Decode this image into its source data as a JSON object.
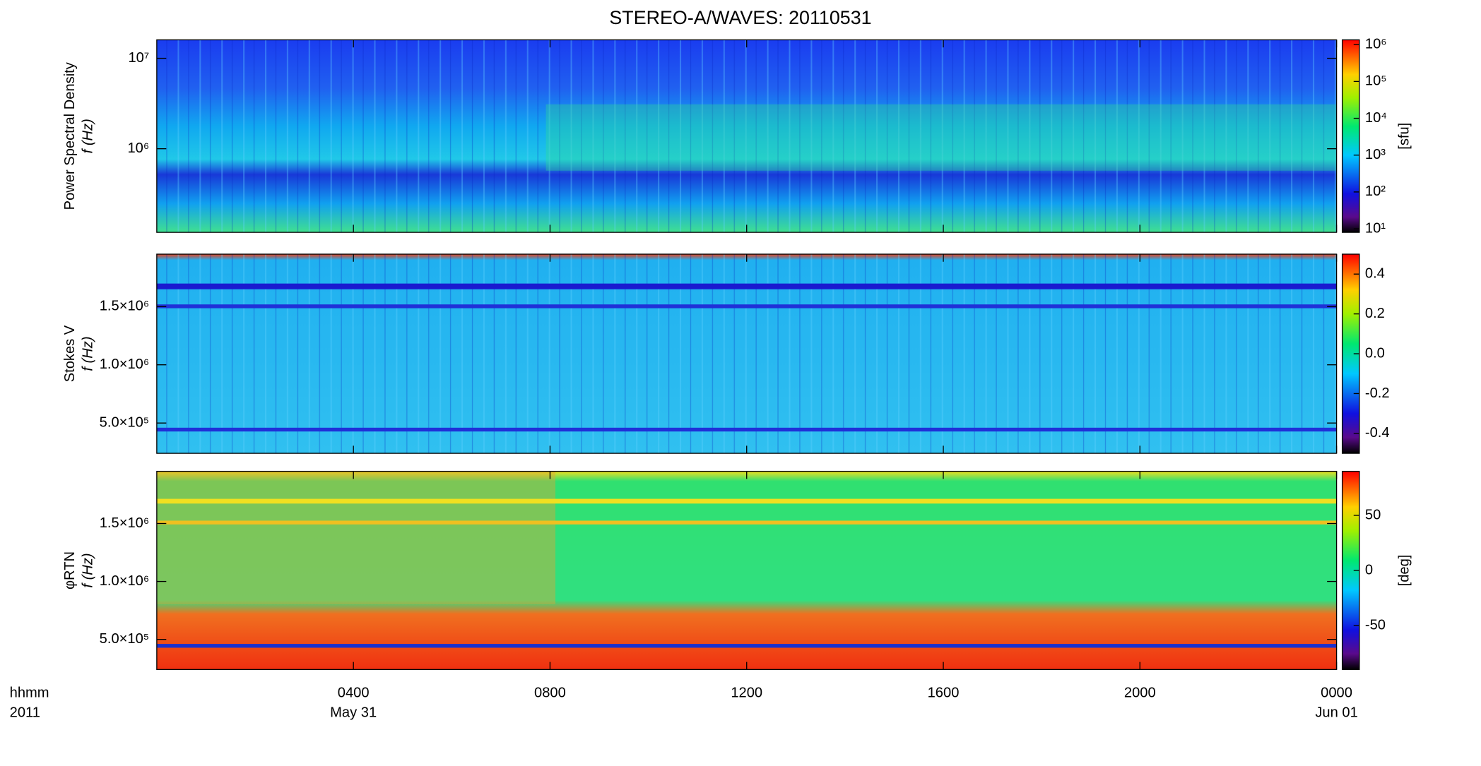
{
  "title": "STEREO-A/WAVES: 20110531",
  "chart_data": [
    {
      "type": "heatmap",
      "ylabel": "Power Spectral Density",
      "ylabel2": "f (Hz)",
      "ylog": true,
      "ylim": [
        119000,
        16000000
      ],
      "yticks": [
        {
          "value": 1000000,
          "label": "10⁶"
        },
        {
          "value": 10000000,
          "label": "10⁷"
        }
      ],
      "clog": true,
      "clim": [
        8,
        1350000
      ],
      "colorbar_label": "[sfu]",
      "cticks": [
        {
          "value": 10,
          "label": "10¹"
        },
        {
          "value": 100,
          "label": "10²"
        },
        {
          "value": 1000,
          "label": "10³"
        },
        {
          "value": 10000,
          "label": "10⁴"
        },
        {
          "value": 100000,
          "label": "10⁵"
        },
        {
          "value": 1000000,
          "label": "10⁶"
        }
      ],
      "xlim": [
        0,
        24
      ],
      "xticks": [
        4,
        8,
        12,
        16,
        20,
        24
      ]
    },
    {
      "type": "heatmap",
      "ylabel": "Stokes V",
      "ylabel2": "f (Hz)",
      "ylim": [
        240000,
        1950000
      ],
      "yticks": [
        {
          "value": 500000,
          "label": "5.0×10⁵"
        },
        {
          "value": 1000000,
          "label": "1.0×10⁶"
        },
        {
          "value": 1500000,
          "label": "1.5×10⁶"
        }
      ],
      "clim": [
        -0.5,
        0.5
      ],
      "cticks": [
        -0.4,
        -0.2,
        {
          "value": 0,
          "label": "0.0"
        },
        0.2,
        0.4
      ],
      "xlim": [
        0,
        24
      ],
      "xticks": [
        4,
        8,
        12,
        16,
        20,
        24
      ]
    },
    {
      "type": "heatmap",
      "ylabel": "φRTN",
      "ylabel2": "f (Hz)",
      "ylim": [
        240000,
        1950000
      ],
      "yticks": [
        {
          "value": 500000,
          "label": "5.0×10⁵"
        },
        {
          "value": 1000000,
          "label": "1.0×10⁶"
        },
        {
          "value": 1500000,
          "label": "1.5×10⁶"
        }
      ],
      "clim": [
        -90,
        90
      ],
      "cticks": [
        -50,
        0,
        50
      ],
      "colorbar_label": "[deg]",
      "xlim": [
        0,
        24
      ],
      "xticks": [
        {
          "value": 4,
          "label": "0400"
        },
        {
          "value": 8,
          "label": "0800"
        },
        {
          "value": 12,
          "label": "1200"
        },
        {
          "value": 16,
          "label": "1600"
        },
        {
          "value": 20,
          "label": "2000"
        },
        {
          "value": 24,
          "label": "0000"
        }
      ],
      "xtick_dates": [
        {
          "value": 4,
          "label": "May 31"
        },
        {
          "value": 24,
          "label": "Jun 01"
        }
      ],
      "x_axis_label": "hhmm",
      "year_label": "2011"
    }
  ]
}
